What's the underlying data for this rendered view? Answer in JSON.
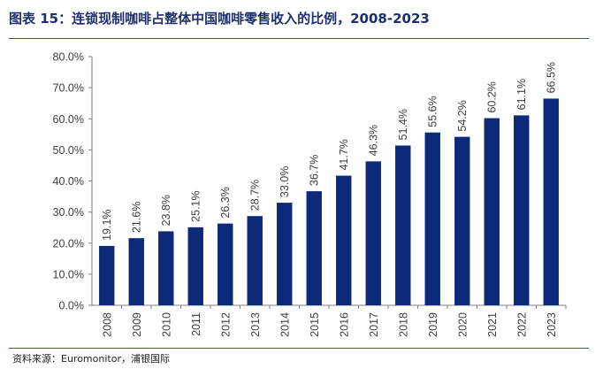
{
  "header": {
    "title": "图表 15：连锁现制咖啡占整体中国咖啡零售收入的比例，2008-2023"
  },
  "footer": {
    "source": "资料来源：Euromonitor，浦银国际"
  },
  "colors": {
    "bar": "#0d2a7a",
    "title": "#1f2f6e",
    "rule": "#3d4f8f"
  },
  "chart_data": {
    "type": "bar",
    "title": "",
    "xlabel": "",
    "ylabel": "",
    "categories": [
      "2008",
      "2009",
      "2010",
      "2011",
      "2012",
      "2013",
      "2014",
      "2015",
      "2016",
      "2017",
      "2018",
      "2019",
      "2020",
      "2021",
      "2022",
      "2023"
    ],
    "values": [
      19.1,
      21.6,
      23.8,
      25.1,
      26.3,
      28.7,
      33.0,
      36.7,
      41.7,
      46.3,
      51.4,
      55.6,
      54.2,
      60.2,
      61.1,
      66.5
    ],
    "data_labels": [
      "19.1%",
      "21.6%",
      "23.8%",
      "25.1%",
      "26.3%",
      "28.7%",
      "33.0%",
      "36.7%",
      "41.7%",
      "46.3%",
      "51.4%",
      "55.6%",
      "54.2%",
      "60.2%",
      "61.1%",
      "66.5%"
    ],
    "ylim": [
      0,
      80
    ],
    "yticks": [
      0,
      10,
      20,
      30,
      40,
      50,
      60,
      70,
      80
    ],
    "ytick_labels": [
      "0.0%",
      "10.0%",
      "20.0%",
      "30.0%",
      "40.0%",
      "50.0%",
      "60.0%",
      "70.0%",
      "80.0%"
    ],
    "grid": false,
    "legend": "none"
  }
}
